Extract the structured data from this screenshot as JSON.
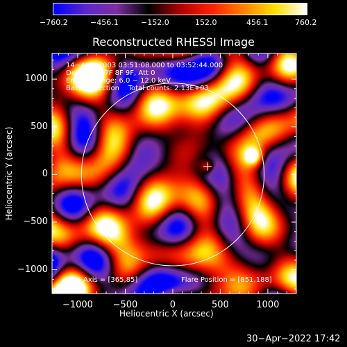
{
  "colorbar": {
    "ticks": [
      "−760.2",
      "−456.1",
      "−152.0",
      "152.0",
      "456.1",
      "760.2"
    ],
    "min": -760.2,
    "max": 760.2,
    "colors": [
      "#0000ff",
      "#5a28c8",
      "#7c2fa0",
      "#000000",
      "#b00000",
      "#ff2000",
      "#ff8000",
      "#ffe000",
      "#ffffff"
    ]
  },
  "chart_data": {
    "type": "heatmap",
    "title": "Reconstructed RHESSI Image",
    "xlabel": "Heliocentric X (arcsec)",
    "ylabel": "Heliocentric Y (arcsec)",
    "xlim": [
      -1270,
      1300
    ],
    "ylim": [
      -1250,
      1270
    ],
    "xticks": [
      -1000,
      -500,
      0,
      500,
      1000
    ],
    "yticks": [
      1000,
      500,
      0,
      -500,
      -1000
    ],
    "xtick_labels": [
      "−1000",
      "−500",
      "0",
      "500",
      "1000"
    ],
    "ytick_labels": [
      "1000",
      "500",
      "0",
      "−500",
      "−1000"
    ],
    "solar_limb_radius": 960,
    "flare_marker": [
      365,
      85
    ],
    "info_lines": [
      "14−Apr−2003 03:51:08.000 to 03:52:44.000",
      "Detectors: 7F 8F 9F, Att 0",
      "Energy Range: 6.0 − 12.0 keV",
      "Back Projection    Total counts: 2.13E+03"
    ],
    "spin_axis": "Spin Axis = [365,85]",
    "flare_position": "Flare Position = [851,188]"
  },
  "footer": {
    "timestamp": "30−Apr−2022 17:42"
  }
}
